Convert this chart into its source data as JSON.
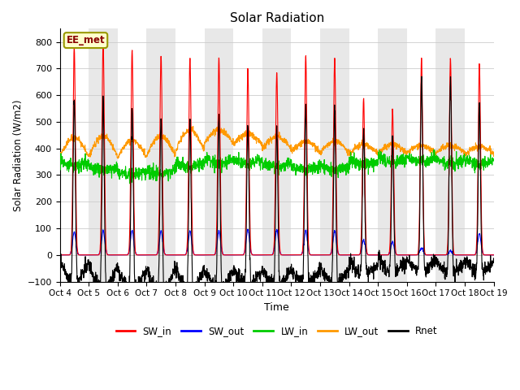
{
  "title": "Solar Radiation",
  "xlabel": "Time",
  "ylabel": "Solar Radiation (W/m2)",
  "ylim": [
    -100,
    850
  ],
  "yticks": [
    -100,
    0,
    100,
    200,
    300,
    400,
    500,
    600,
    700,
    800
  ],
  "n_days": 15,
  "n_points_per_day": 144,
  "colors": {
    "SW_in": "#ff0000",
    "SW_out": "#0000ff",
    "LW_in": "#00cc00",
    "LW_out": "#ff9900",
    "Rnet": "#000000"
  },
  "legend_label": "EE_met",
  "background_alternating": [
    "#ffffff",
    "#e8e8e8"
  ],
  "line_width": 0.8
}
